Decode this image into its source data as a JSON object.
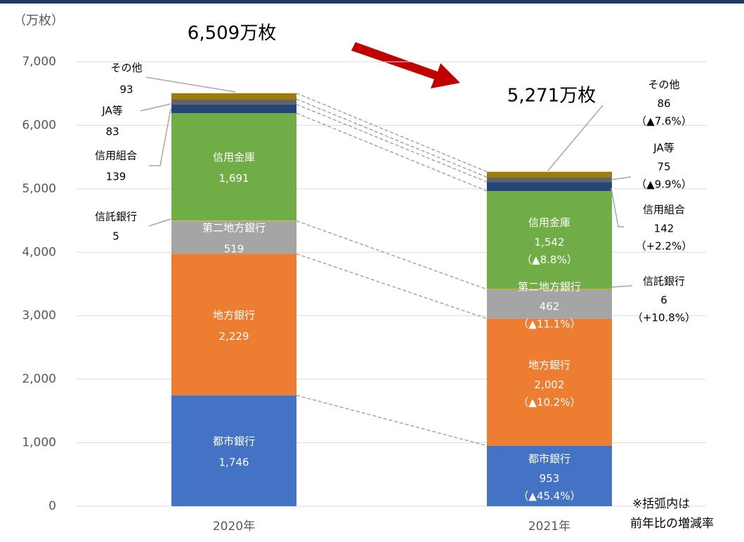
{
  "chart_data": {
    "type": "stacked_bar",
    "y_unit": "（万枚）",
    "categories": [
      "2020年",
      "2021年"
    ],
    "totals": [
      "6,509万枚",
      "5,271万枚"
    ],
    "note": [
      "※括弧内は",
      "前年比の増減率"
    ],
    "ylim": [
      0,
      7000
    ],
    "yticks": [
      0,
      {
        "value": 1000,
        "label": "1,000"
      },
      {
        "value": 2000,
        "label": "2,000"
      },
      {
        "value": 3000,
        "label": "3,000"
      },
      {
        "value": 4000,
        "label": "4,000"
      },
      {
        "value": 5000,
        "label": "5,000"
      },
      {
        "value": 6000,
        "label": "6,000"
      },
      {
        "value": 7000,
        "label": "7,000"
      }
    ],
    "grid": true,
    "series": [
      {
        "name": "都市銀行",
        "color": "#4472c4",
        "values": [
          1746,
          953
        ],
        "value_labels": [
          "1,746",
          "953"
        ],
        "change": "（▲45.4%）"
      },
      {
        "name": "地方銀行",
        "color": "#ed7d31",
        "values": [
          2229,
          2002
        ],
        "value_labels": [
          "2,229",
          "2,002"
        ],
        "change": "（▲10.2%）"
      },
      {
        "name": "第二地方銀行",
        "color": "#a5a5a5",
        "values": [
          519,
          462
        ],
        "change": "（▲11.1%）"
      },
      {
        "name": "信託銀行",
        "color": "#ffc000",
        "values": [
          5,
          6
        ],
        "change": "（+10.8%）"
      },
      {
        "name": "信用金庫",
        "color": "#70ad47",
        "values": [
          1691,
          1542
        ],
        "value_labels": [
          "1,691",
          "1,542"
        ],
        "change": "（▲8.8%）"
      },
      {
        "name": "信用組合",
        "color": "#264478",
        "values": [
          139,
          142
        ],
        "change": "（+2.2%）"
      },
      {
        "name": "JA等",
        "color": "#636363",
        "values": [
          83,
          75
        ],
        "change": "（▲9.9%）"
      },
      {
        "name": "その他",
        "color": "#9e7e00",
        "values": [
          93,
          86
        ],
        "change": "（▲7.6%）"
      }
    ]
  }
}
